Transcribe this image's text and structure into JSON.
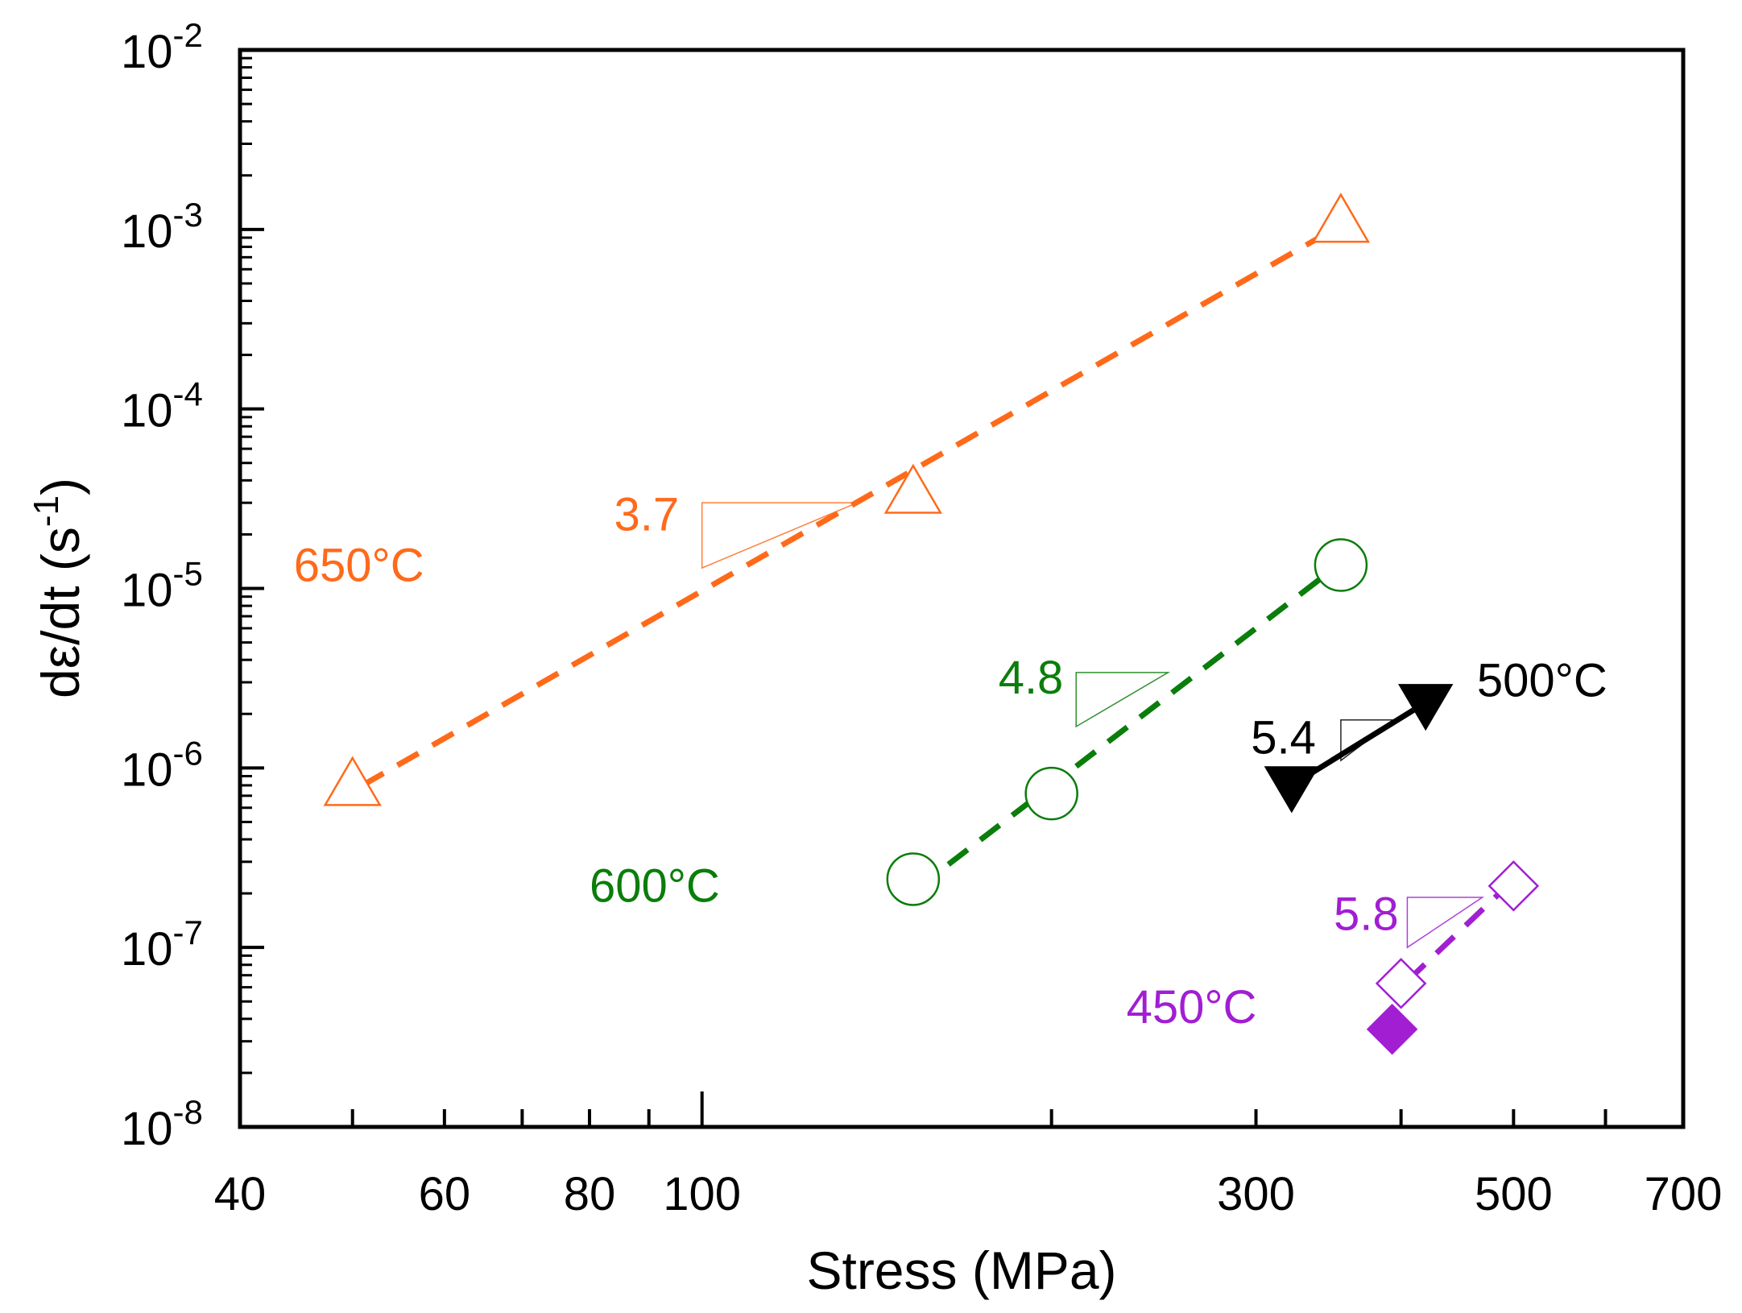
{
  "chart_data": {
    "type": "scatter",
    "title": "",
    "xlabel": "Stress (MPa)",
    "ylabel": "dε/dt (s⁻¹)",
    "ylabel_parts": {
      "main": "dε/dt (s",
      "exp": "-1",
      "close": ")"
    },
    "xscale": "log",
    "yscale": "log",
    "xlim": [
      40,
      700
    ],
    "ylim": [
      1e-08,
      0.01
    ],
    "x_ticks": [
      {
        "value": 40,
        "label": "40"
      },
      {
        "value": 60,
        "label": "60"
      },
      {
        "value": 80,
        "label": "80"
      },
      {
        "value": 100,
        "label": "100"
      },
      {
        "value": 300,
        "label": "300"
      },
      {
        "value": 500,
        "label": "500"
      },
      {
        "value": 700,
        "label": "700"
      }
    ],
    "x_major_ticks": [
      100
    ],
    "x_minor_ticks": [
      50,
      60,
      70,
      80,
      90,
      200,
      300,
      400,
      500,
      600
    ],
    "y_ticks": [
      {
        "value": 0.01,
        "base": "10",
        "exp": "-2"
      },
      {
        "value": 0.001,
        "base": "10",
        "exp": "-3"
      },
      {
        "value": 0.0001,
        "base": "10",
        "exp": "-4"
      },
      {
        "value": 1e-05,
        "base": "10",
        "exp": "-5"
      },
      {
        "value": 1e-06,
        "base": "10",
        "exp": "-6"
      },
      {
        "value": 1e-07,
        "base": "10",
        "exp": "-7"
      },
      {
        "value": 1e-08,
        "base": "10",
        "exp": "-8"
      }
    ],
    "grid": false,
    "series": [
      {
        "name": "650°C",
        "color": "#ff6a1a",
        "marker": "triangle-up",
        "filled": false,
        "points": [
          {
            "x": 50,
            "y": 8e-07
          },
          {
            "x": 152,
            "y": 3.4e-05
          },
          {
            "x": 355,
            "y": 0.0011
          }
        ],
        "fit": {
          "line": "dashed",
          "from": [
            51,
            8e-07
          ],
          "to": [
            345,
            0.00095
          ]
        },
        "slope_label": "3.7",
        "slope_triangle": {
          "x1": 100,
          "x2": 136,
          "y_top": 3e-05,
          "y_bottom": 1.3e-05
        },
        "label_pos": {
          "x": 44.5,
          "y": 1.1e-05
        },
        "slope_label_pos": {
          "x": 84,
          "y": 2.1e-05
        }
      },
      {
        "name": "600°C",
        "color": "#0a7d0a",
        "marker": "circle",
        "filled": false,
        "points": [
          {
            "x": 152,
            "y": 2.4e-07
          },
          {
            "x": 200,
            "y": 7.2e-07
          },
          {
            "x": 355,
            "y": 1.35e-05
          }
        ],
        "fit": {
          "line": "dashed",
          "from": [
            163,
            2.9e-07
          ],
          "to": [
            342,
            1.15e-05
          ]
        },
        "slope_label": "4.8",
        "slope_triangle": {
          "x1": 210,
          "x2": 252,
          "y_top": 3.4e-06,
          "y_bottom": 1.7e-06
        },
        "label_pos": {
          "x": 80,
          "y": 1.8e-07
        },
        "slope_label_pos": {
          "x": 180,
          "y": 2.6e-06
        }
      },
      {
        "name": "500°C",
        "color": "#000000",
        "marker": "triangle-down",
        "filled": true,
        "points": [
          {
            "x": 322,
            "y": 8e-07
          },
          {
            "x": 420,
            "y": 2.3e-06
          }
        ],
        "fit": {
          "line": "solid",
          "from": [
            322,
            8e-07
          ],
          "to": [
            410,
            2.1e-06
          ]
        },
        "slope_label": "5.4",
        "slope_triangle": {
          "x1": 355,
          "x2": 395,
          "y_top": 1.85e-06,
          "y_bottom": 1.1e-06
        },
        "label_pos": {
          "x": 465,
          "y": 2.5e-06
        },
        "slope_label_pos": {
          "x": 297,
          "y": 1.2e-06
        }
      },
      {
        "name": "450°C",
        "color": "#a11ed3",
        "marker": "diamond",
        "filled": false,
        "points": [
          {
            "x": 400,
            "y": 6.3e-08
          },
          {
            "x": 500,
            "y": 2.2e-07
          }
        ],
        "fit": {
          "line": "dashed",
          "from": [
            405,
            6.5e-08
          ],
          "to": [
            490,
            2.1e-07
          ]
        },
        "slope_label": "5.8",
        "slope_triangle": {
          "x1": 405,
          "x2": 470,
          "y_top": 1.9e-07,
          "y_bottom": 1e-07
        },
        "label_pos": {
          "x": 232,
          "y": 3.8e-08
        },
        "slope_label_pos": {
          "x": 350,
          "y": 1.25e-07
        }
      },
      {
        "name": "450°C (filled)",
        "color": "#a11ed3",
        "marker": "diamond",
        "filled": true,
        "show_label": false,
        "points": [
          {
            "x": 393,
            "y": 3.5e-08
          }
        ]
      }
    ]
  }
}
